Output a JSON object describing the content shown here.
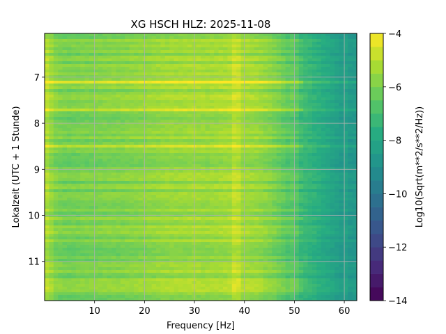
{
  "chart_data": {
    "type": "heatmap",
    "title": "XG HSCH  HLZ: 2025-11-08",
    "xlabel": "Frequency [Hz]",
    "ylabel": "Lokalzeit (UTC + 1 Stunde)",
    "colorbar_label": "Log10(Sqrt(m**2/s**2/Hz))",
    "xlim": [
      0,
      62.5
    ],
    "ylim": [
      6.05,
      11.85
    ],
    "y_inverted": true,
    "xticks": [
      10,
      20,
      30,
      40,
      50,
      60
    ],
    "yticks": [
      7,
      8,
      9,
      10,
      11
    ],
    "clim": [
      -14,
      -4
    ],
    "colorbar_ticks": [
      -4,
      -6,
      -8,
      -10,
      -12,
      -14
    ],
    "colormap": "viridis",
    "grid": true,
    "grid_color": "#b0b0b0",
    "freq_bins_hz": [
      0,
      2.5,
      5,
      7.5,
      10,
      12.5,
      15,
      17.5,
      20,
      22.5,
      25,
      27.5,
      30,
      32.5,
      35,
      37.5,
      40,
      42.5,
      45,
      47.5,
      50,
      52.5,
      55,
      57.5,
      60
    ],
    "mean_log10_amplitude_by_freq": [
      -5.0,
      -6.0,
      -6.1,
      -6.0,
      -6.0,
      -5.9,
      -5.9,
      -5.8,
      -5.7,
      -5.6,
      -5.5,
      -5.5,
      -5.4,
      -5.5,
      -5.4,
      -5.3,
      -5.4,
      -5.5,
      -5.8,
      -6.3,
      -6.9,
      -7.3,
      -7.7,
      -8.1,
      -8.6
    ],
    "notable_times_h": [
      6.8,
      7.1,
      7.45,
      7.7,
      8.5
    ],
    "notable_time_offsets_log10": [
      0.6,
      1.2,
      0.8,
      1.4,
      1.1
    ],
    "notable_freq_lines_hz": [
      38.5,
      50,
      60
    ],
    "notable_freq_line_offsets_log10": [
      0.4,
      0.3,
      0.3
    ]
  }
}
